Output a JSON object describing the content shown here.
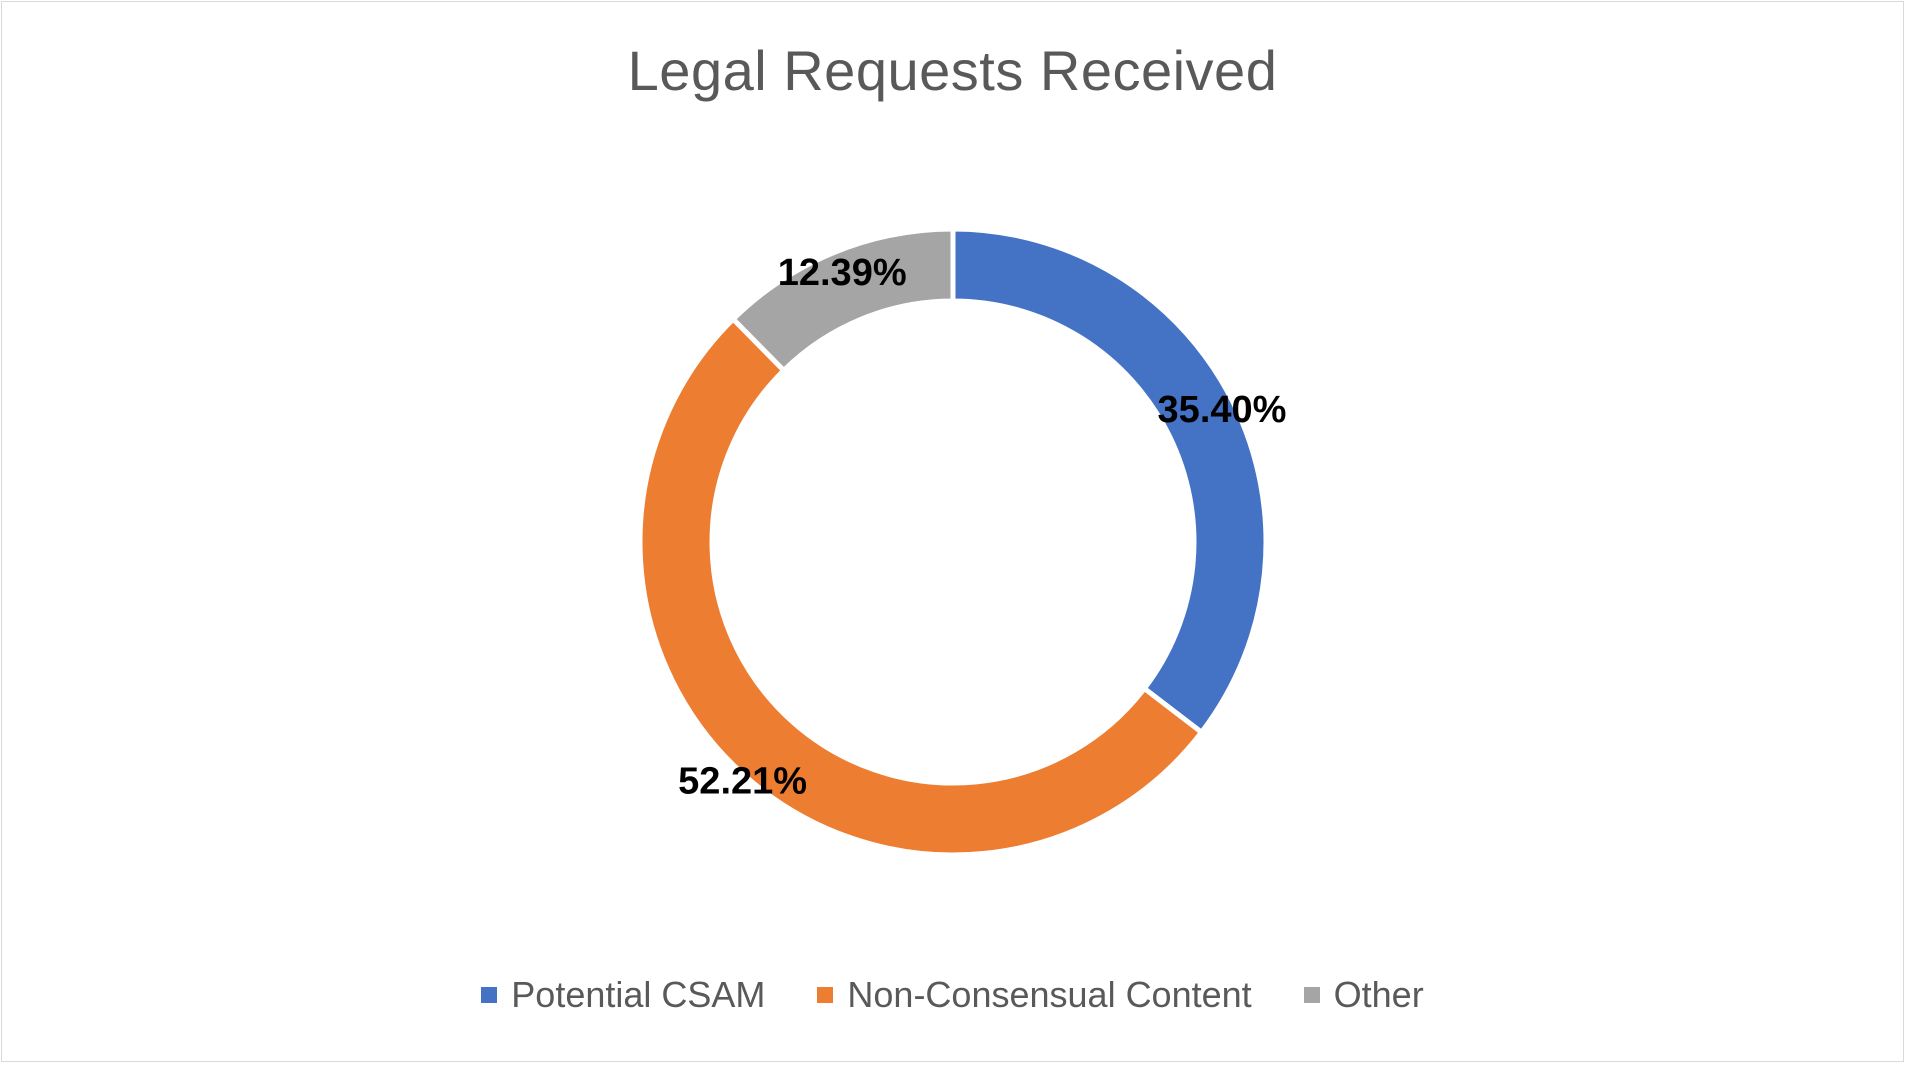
{
  "chart_data": {
    "type": "pie",
    "title": "Legal Requests Received",
    "donut": true,
    "categories": [
      "Potential CSAM",
      "Non-Consensual Content",
      "Other"
    ],
    "values": [
      35.4,
      52.21,
      12.39
    ],
    "labels": [
      "35.40%",
      "52.21%",
      "12.39%"
    ],
    "colors": [
      "#4472c4",
      "#ed7d31",
      "#a5a5a5"
    ],
    "legend_position": "bottom"
  }
}
